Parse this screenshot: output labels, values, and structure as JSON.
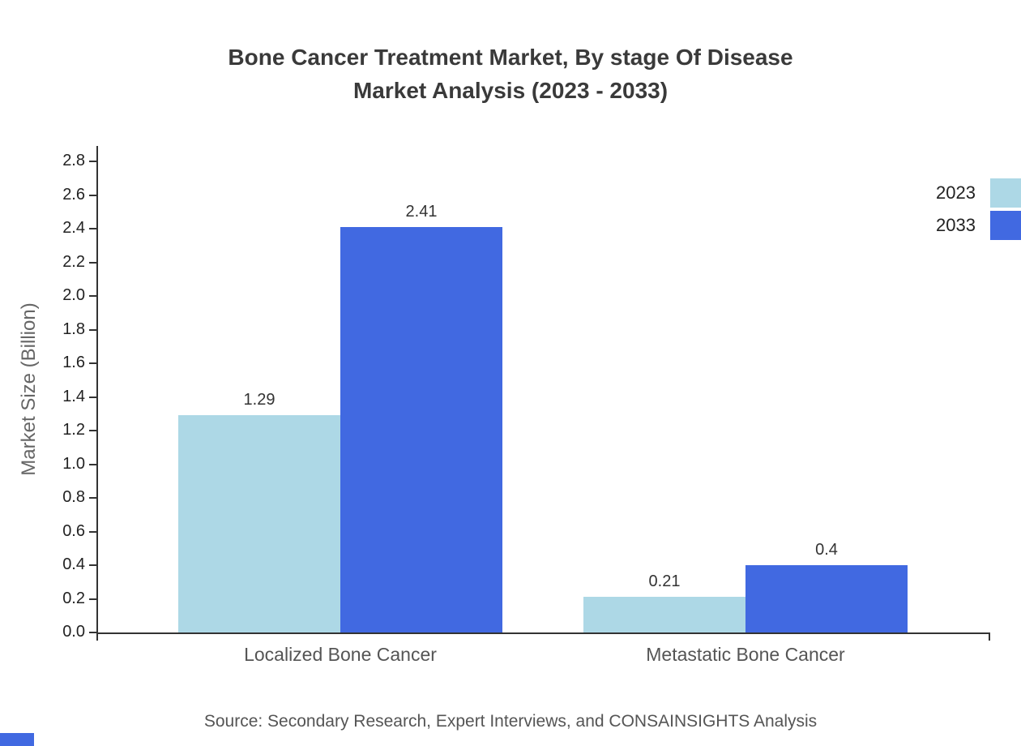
{
  "title": {
    "line1": "Bone Cancer Treatment Market, By stage Of Disease",
    "line2": "Market Analysis (2023 - 2033)"
  },
  "source": "Source: Secondary Research, Expert Interviews, and CONSAINSIGHTS Analysis",
  "chart_data": {
    "type": "bar",
    "title": "Bone Cancer Treatment Market, By stage Of Disease Market Analysis (2023 - 2033)",
    "categories": [
      "Localized Bone Cancer",
      "Metastatic Bone Cancer"
    ],
    "series": [
      {
        "name": "2023",
        "color": "#ADD8E6",
        "values": [
          1.29,
          0.21
        ]
      },
      {
        "name": "2033",
        "color": "#4169E1",
        "values": [
          2.41,
          0.4
        ]
      }
    ],
    "xlabel": "",
    "ylabel": "Market Size (Billion)",
    "ylim": [
      0,
      2.8
    ],
    "ytick_step": 0.2,
    "grid": false,
    "legend_position": "top-right"
  }
}
